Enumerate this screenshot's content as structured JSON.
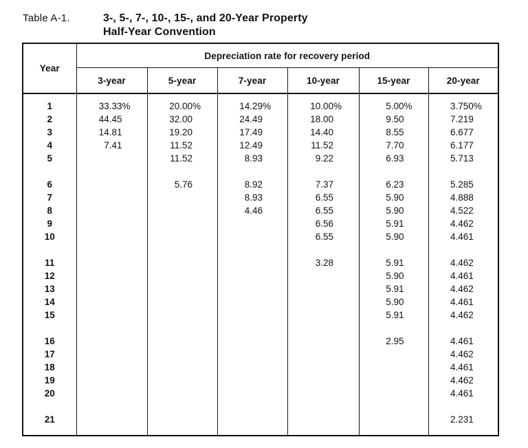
{
  "title": {
    "label": "Table A-1.",
    "line1": "3-, 5-, 7-, 10-, 15-, and 20-Year Property",
    "line2": "Half-Year Convention"
  },
  "table": {
    "corner_header": "Year",
    "span_header": "Depreciation rate for recovery period",
    "column_headers": [
      "3-year",
      "5-year",
      "7-year",
      "10-year",
      "15-year",
      "20-year"
    ],
    "rows": [
      {
        "year": "1",
        "gap_before": false,
        "values": [
          "33.33%",
          "20.00%",
          "14.29%",
          "10.00%",
          "5.00%",
          "3.750%"
        ]
      },
      {
        "year": "2",
        "gap_before": false,
        "values": [
          "44.45",
          "32.00",
          "24.49",
          "18.00",
          "9.50",
          "7.219"
        ]
      },
      {
        "year": "3",
        "gap_before": false,
        "values": [
          "14.81",
          "19.20",
          "17.49",
          "14.40",
          "8.55",
          "6.677"
        ]
      },
      {
        "year": "4",
        "gap_before": false,
        "values": [
          "7.41",
          "11.52",
          "12.49",
          "11.52",
          "7.70",
          "6.177"
        ]
      },
      {
        "year": "5",
        "gap_before": false,
        "values": [
          "",
          "11.52",
          "8.93",
          "9.22",
          "6.93",
          "5.713"
        ]
      },
      {
        "year": "6",
        "gap_before": true,
        "values": [
          "",
          "5.76",
          "8.92",
          "7.37",
          "6.23",
          "5.285"
        ]
      },
      {
        "year": "7",
        "gap_before": false,
        "values": [
          "",
          "",
          "8.93",
          "6.55",
          "5.90",
          "4.888"
        ]
      },
      {
        "year": "8",
        "gap_before": false,
        "values": [
          "",
          "",
          "4.46",
          "6.55",
          "5.90",
          "4.522"
        ]
      },
      {
        "year": "9",
        "gap_before": false,
        "values": [
          "",
          "",
          "",
          "6.56",
          "5.91",
          "4.462"
        ]
      },
      {
        "year": "10",
        "gap_before": false,
        "values": [
          "",
          "",
          "",
          "6.55",
          "5.90",
          "4.461"
        ]
      },
      {
        "year": "11",
        "gap_before": true,
        "values": [
          "",
          "",
          "",
          "3.28",
          "5.91",
          "4.462"
        ]
      },
      {
        "year": "12",
        "gap_before": false,
        "values": [
          "",
          "",
          "",
          "",
          "5.90",
          "4.461"
        ]
      },
      {
        "year": "13",
        "gap_before": false,
        "values": [
          "",
          "",
          "",
          "",
          "5.91",
          "4.462"
        ]
      },
      {
        "year": "14",
        "gap_before": false,
        "values": [
          "",
          "",
          "",
          "",
          "5.90",
          "4.461"
        ]
      },
      {
        "year": "15",
        "gap_before": false,
        "values": [
          "",
          "",
          "",
          "",
          "5.91",
          "4.462"
        ]
      },
      {
        "year": "16",
        "gap_before": true,
        "values": [
          "",
          "",
          "",
          "",
          "2.95",
          "4.461"
        ]
      },
      {
        "year": "17",
        "gap_before": false,
        "values": [
          "",
          "",
          "",
          "",
          "",
          "4.462"
        ]
      },
      {
        "year": "18",
        "gap_before": false,
        "values": [
          "",
          "",
          "",
          "",
          "",
          "4.461"
        ]
      },
      {
        "year": "19",
        "gap_before": false,
        "values": [
          "",
          "",
          "",
          "",
          "",
          "4.462"
        ]
      },
      {
        "year": "20",
        "gap_before": false,
        "values": [
          "",
          "",
          "",
          "",
          "",
          "4.461"
        ]
      },
      {
        "year": "21",
        "gap_before": true,
        "values": [
          "",
          "",
          "",
          "",
          "",
          "2.231"
        ]
      }
    ]
  },
  "colors": {
    "background": "#ffffff",
    "text": "#111111",
    "border": "#111111"
  }
}
